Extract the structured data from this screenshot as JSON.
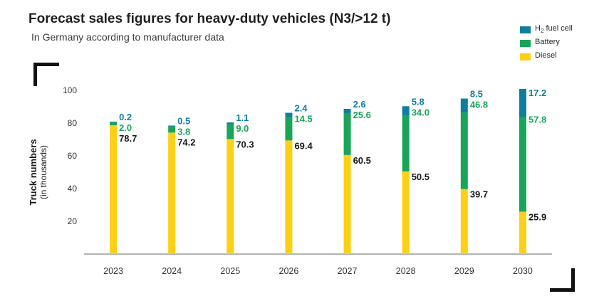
{
  "title": "Forecast sales figures for heavy-duty vehicles (N3/>12 t)",
  "subtitle": "In Germany according to manufacturer data",
  "ylabel": "Truck numbers",
  "ylabel_sub": "(in thousands)",
  "colors": {
    "h2": "#0e7ea0",
    "battery": "#18a55a",
    "diesel": "#fcd015",
    "diesel_label": "#1a1a1a",
    "axis": "#666666",
    "tick": "#333333"
  },
  "legend": [
    {
      "pre": "H",
      "sub": "2",
      "post": " fuel cell",
      "color": "#0e7ea0"
    },
    {
      "pre": "Battery",
      "sub": "",
      "post": "",
      "color": "#18a55a"
    },
    {
      "pre": "Diesel",
      "sub": "",
      "post": "",
      "color": "#fcd015"
    }
  ],
  "chart_data": {
    "type": "bar",
    "stacked": true,
    "title": "Forecast sales figures for heavy-duty vehicles (N3/>12 t)",
    "subtitle": "In Germany according to manufacturer data",
    "xlabel": "",
    "ylabel": "Truck numbers (in thousands)",
    "ylim": [
      0,
      100
    ],
    "yticks": [
      20,
      40,
      60,
      80,
      100
    ],
    "legend_position": "top-right",
    "grid": false,
    "categories": [
      "2023",
      "2024",
      "2025",
      "2026",
      "2027",
      "2028",
      "2029",
      "2030"
    ],
    "series": [
      {
        "name": "Diesel",
        "color": "#fcd015",
        "values": [
          78.7,
          74.2,
          70.3,
          69.4,
          60.5,
          50.5,
          39.7,
          25.9
        ]
      },
      {
        "name": "Battery",
        "color": "#18a55a",
        "values": [
          2.0,
          3.8,
          9.0,
          14.5,
          25.6,
          34.0,
          46.8,
          57.8
        ]
      },
      {
        "name": "H2 fuel cell",
        "color": "#0e7ea0",
        "values": [
          0.2,
          0.5,
          1.1,
          2.4,
          2.6,
          5.8,
          8.5,
          17.2
        ]
      }
    ],
    "labels": {
      "Diesel": [
        "78.7",
        "74.2",
        "70.3",
        "69.4",
        "60.5",
        "50.5",
        "39.7",
        "25.9"
      ],
      "Battery": [
        "2.0",
        "3.8",
        "9.0",
        "14.5",
        "25.6",
        "34.0",
        "46.8",
        "57.8"
      ],
      "H2 fuel cell": [
        "0.2",
        "0.5",
        "1.1",
        "2.4",
        "2.6",
        "5.8",
        "8.5",
        "17.2"
      ]
    }
  }
}
